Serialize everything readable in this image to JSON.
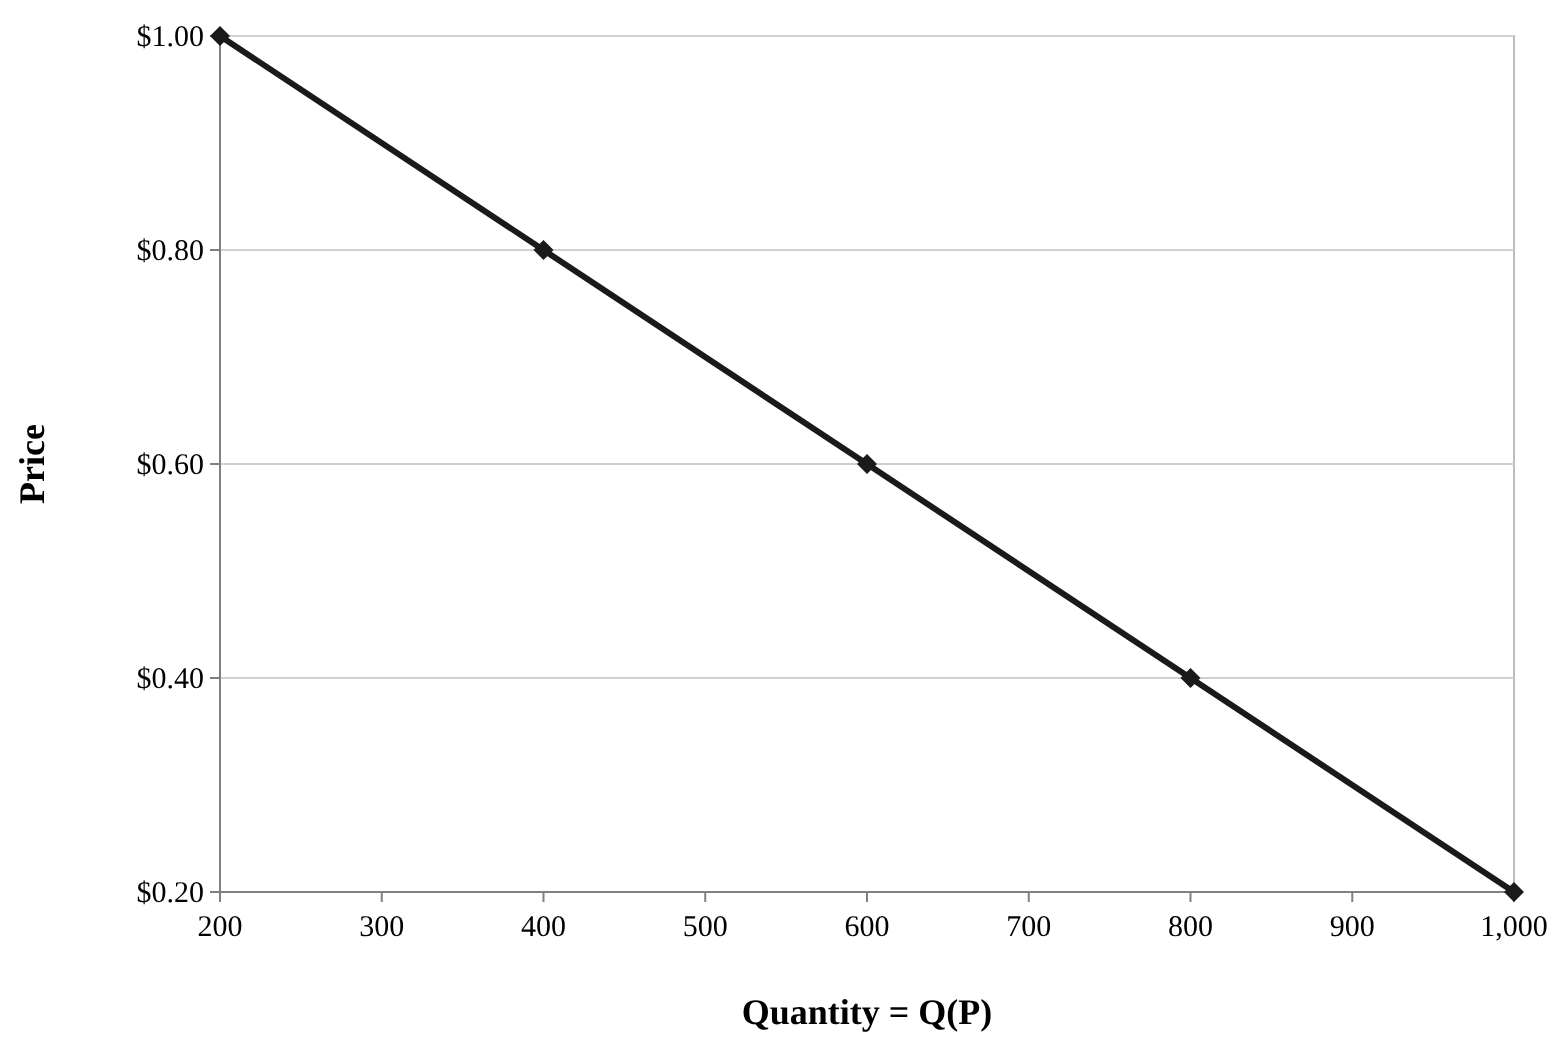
{
  "chart_data": {
    "type": "line",
    "xlabel": "Quantity = Q(P)",
    "ylabel": "Price",
    "x": [
      200,
      400,
      600,
      800,
      1000
    ],
    "series": [
      {
        "color": "#1a1a1a",
        "values": [
          1.0,
          0.8,
          0.6,
          0.4,
          0.2
        ]
      }
    ],
    "xlim": [
      200,
      1000
    ],
    "xticks": [
      200,
      300,
      400,
      500,
      600,
      700,
      800,
      900,
      {
        "value": 1000,
        "label": "1,000"
      }
    ],
    "ylim": [
      0.2,
      1.0
    ],
    "yticks": [
      {
        "value": 0.2,
        "label": "$0.20"
      },
      {
        "value": 0.4,
        "label": "$0.40"
      },
      {
        "value": 0.6,
        "label": "$0.60"
      },
      {
        "value": 0.8,
        "label": "$0.80"
      },
      {
        "value": 1.0,
        "label": "$1.00"
      }
    ],
    "grid": "y",
    "marker": "diamond",
    "line_style": "solid"
  }
}
